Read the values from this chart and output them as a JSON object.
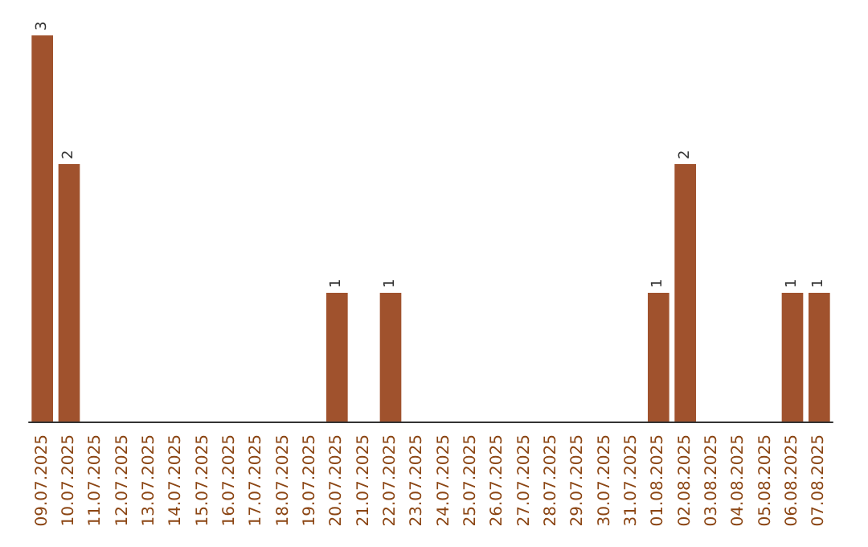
{
  "chart_data": {
    "type": "bar",
    "categories": [
      "09.07.2025",
      "10.07.2025",
      "11.07.2025",
      "12.07.2025",
      "13.07.2025",
      "14.07.2025",
      "15.07.2025",
      "16.07.2025",
      "17.07.2025",
      "18.07.2025",
      "19.07.2025",
      "20.07.2025",
      "21.07.2025",
      "22.07.2025",
      "23.07.2025",
      "24.07.2025",
      "25.07.2025",
      "26.07.2025",
      "27.07.2025",
      "28.07.2025",
      "29.07.2025",
      "30.07.2025",
      "31.07.2025",
      "01.08.2025",
      "02.08.2025",
      "03.08.2025",
      "04.08.2025",
      "05.08.2025",
      "06.08.2025",
      "07.08.2025"
    ],
    "values": [
      3,
      2,
      0,
      0,
      0,
      0,
      0,
      0,
      0,
      0,
      0,
      1,
      0,
      1,
      0,
      0,
      0,
      0,
      0,
      0,
      0,
      0,
      0,
      1,
      2,
      0,
      0,
      0,
      1,
      1
    ],
    "value_labels": [
      "3",
      "2",
      null,
      null,
      null,
      null,
      null,
      null,
      null,
      null,
      null,
      "1",
      null,
      "1",
      null,
      null,
      null,
      null,
      null,
      null,
      null,
      null,
      null,
      "1",
      "2",
      null,
      null,
      null,
      "1",
      "1"
    ],
    "color": "#a0522d"
  }
}
